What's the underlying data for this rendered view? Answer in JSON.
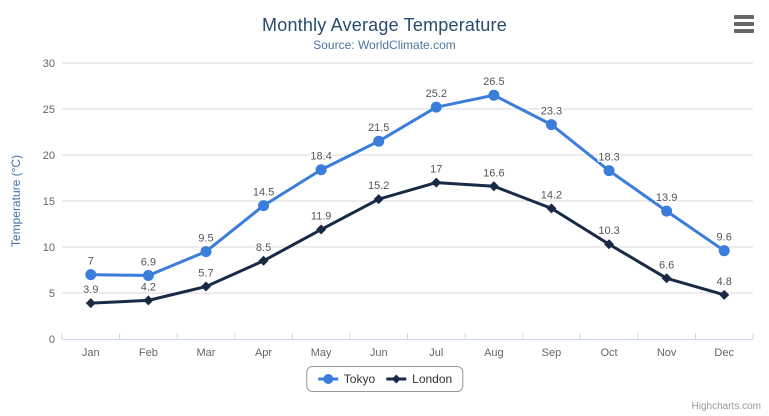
{
  "title": "Monthly Average Temperature",
  "subtitle": "Source: WorldClimate.com",
  "credits": "Highcharts.com",
  "menu": {
    "icon": "hamburger-menu"
  },
  "colors": {
    "title": "#274b6d",
    "subtitle": "#4d759e",
    "axis_title": "#4572A7",
    "axis_labels": "#666666",
    "grid": "#d8d8d8",
    "axis_line": "#ccd6eb",
    "data_label": "#555555",
    "legend_text": "#333333",
    "credits_text": "#999999"
  },
  "chart_data": {
    "type": "line",
    "title": "Monthly Average Temperature",
    "subtitle": "Source: WorldClimate.com",
    "xlabel": "",
    "ylabel": "Temperature (°C)",
    "ylim": [
      0,
      30
    ],
    "ytick_step": 5,
    "grid": true,
    "legend_position": "bottom-center",
    "categories": [
      "Jan",
      "Feb",
      "Mar",
      "Apr",
      "May",
      "Jun",
      "Jul",
      "Aug",
      "Sep",
      "Oct",
      "Nov",
      "Dec"
    ],
    "series": [
      {
        "name": "Tokyo",
        "color": "#3B7DDB",
        "marker": "circle",
        "values": [
          7,
          6.9,
          9.5,
          14.5,
          18.4,
          21.5,
          25.2,
          26.5,
          23.3,
          18.3,
          13.9,
          9.6
        ]
      },
      {
        "name": "London",
        "color": "#182A45",
        "marker": "diamond",
        "values": [
          3.9,
          4.2,
          5.7,
          8.5,
          11.9,
          15.2,
          17,
          16.6,
          14.2,
          10.3,
          6.6,
          4.8
        ]
      }
    ]
  }
}
